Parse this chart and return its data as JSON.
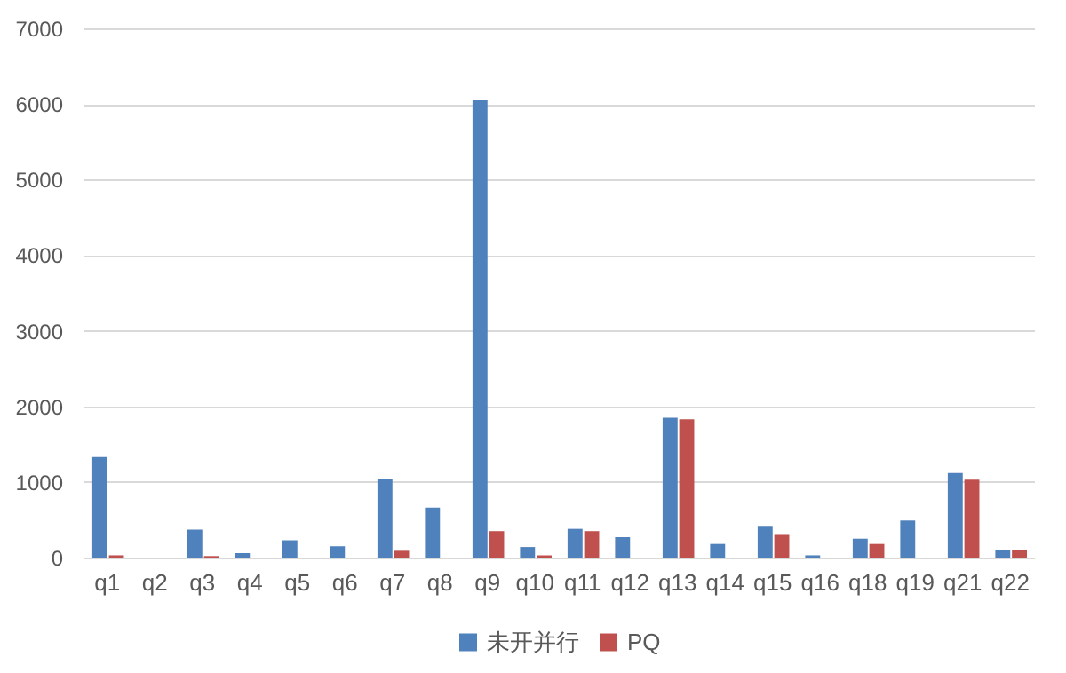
{
  "chart_data": {
    "type": "bar",
    "categories": [
      "q1",
      "q2",
      "q3",
      "q4",
      "q5",
      "q6",
      "q7",
      "q8",
      "q9",
      "q10",
      "q11",
      "q12",
      "q13",
      "q14",
      "q15",
      "q16",
      "q18",
      "q19",
      "q21",
      "q22"
    ],
    "series": [
      {
        "name": "未开并行",
        "color": "#4f81bd",
        "values": [
          1330,
          0,
          370,
          60,
          230,
          150,
          1040,
          660,
          6050,
          140,
          380,
          270,
          1850,
          180,
          420,
          30,
          250,
          490,
          1120,
          100
        ]
      },
      {
        "name": "PQ",
        "color": "#c0504d",
        "values": [
          30,
          0,
          20,
          0,
          0,
          0,
          90,
          0,
          350,
          30,
          350,
          0,
          1830,
          0,
          300,
          0,
          180,
          0,
          1030,
          100
        ]
      }
    ],
    "ylim": [
      0,
      7000
    ],
    "yticks": [
      0,
      1000,
      2000,
      3000,
      4000,
      5000,
      6000,
      7000
    ],
    "grid": "y",
    "legend": "bottom"
  }
}
